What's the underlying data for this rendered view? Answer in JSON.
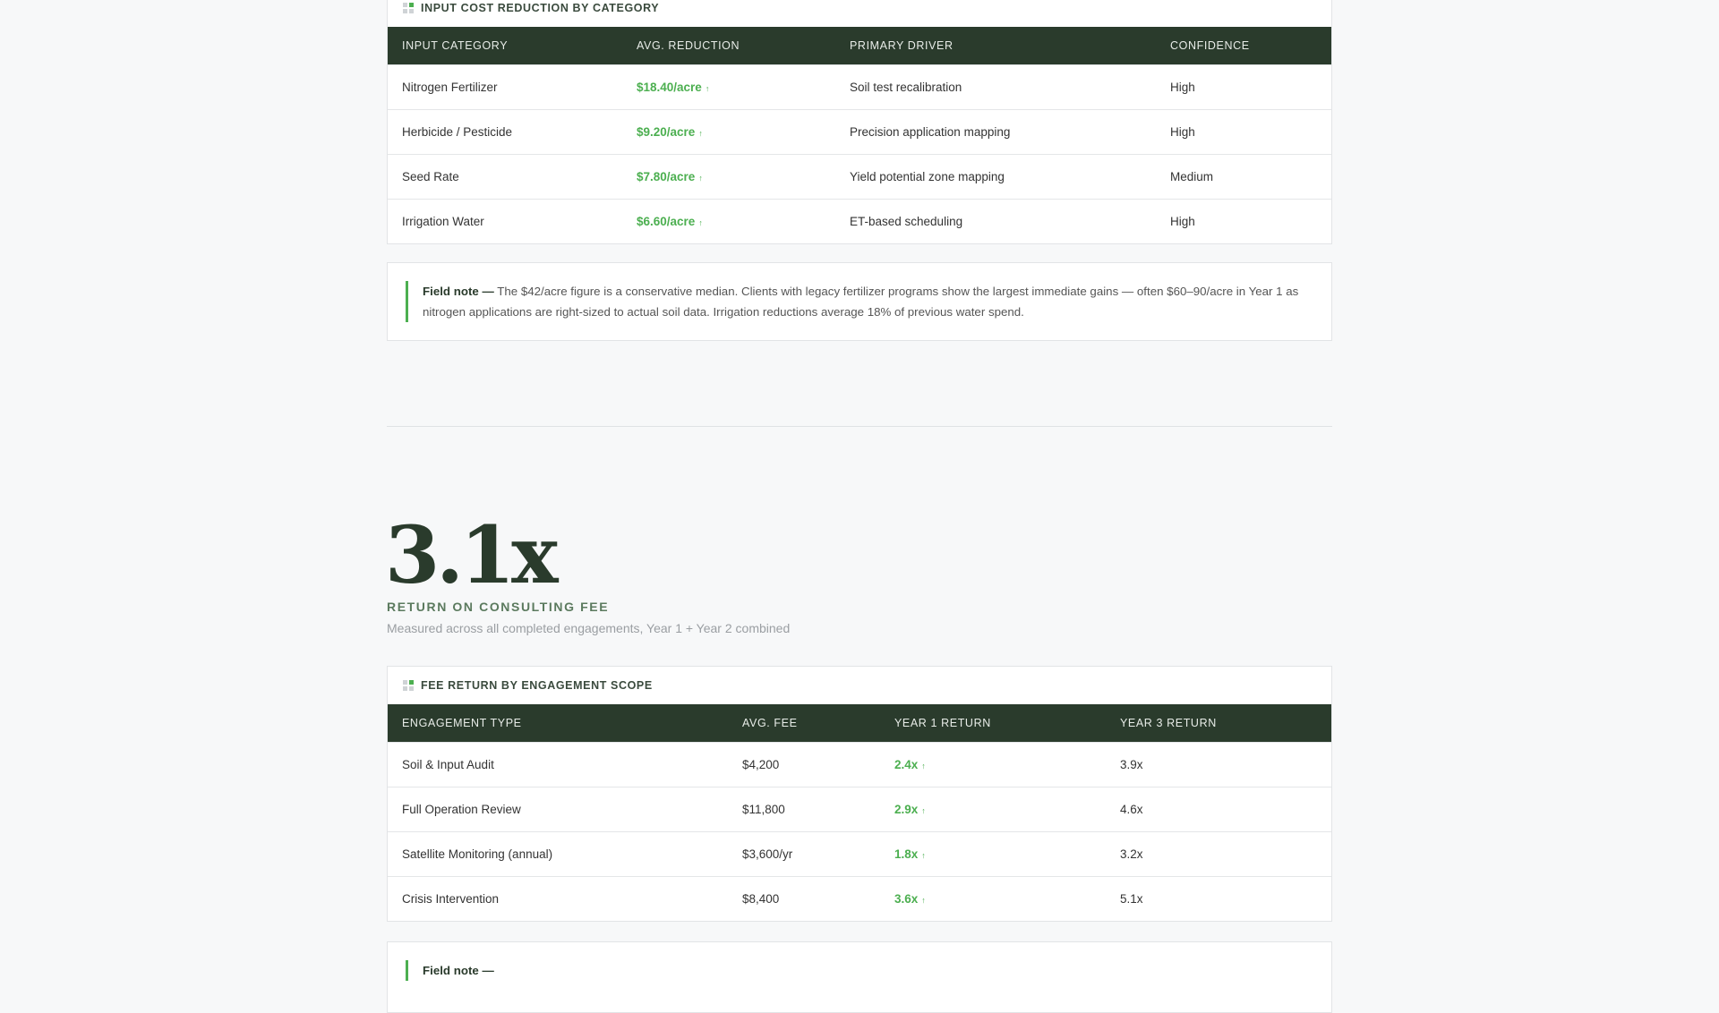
{
  "section1": {
    "title": "INPUT COST REDUCTION BY CATEGORY",
    "headers": [
      "INPUT CATEGORY",
      "AVG. REDUCTION",
      "PRIMARY DRIVER",
      "CONFIDENCE"
    ],
    "rows": [
      {
        "category": "Nitrogen Fertilizer",
        "reduction": "$18.40/acre",
        "driver": "Soil test recalibration",
        "confidence": "High"
      },
      {
        "category": "Herbicide / Pesticide",
        "reduction": "$9.20/acre",
        "driver": "Precision application mapping",
        "confidence": "High"
      },
      {
        "category": "Seed Rate",
        "reduction": "$7.80/acre",
        "driver": "Yield potential zone mapping",
        "confidence": "Medium"
      },
      {
        "category": "Irrigation Water",
        "reduction": "$6.60/acre",
        "driver": "ET-based scheduling",
        "confidence": "High"
      }
    ],
    "up_arrow": "↑",
    "note_label": "Field note —",
    "note_text": " The $42/acre figure is a conservative median. Clients with legacy fertilizer programs show the largest immediate gains — often $60–90/acre in Year 1 as nitrogen applications are right-sized to actual soil data. Irrigation reductions average 18% of previous water spend."
  },
  "hero": {
    "value": "3.1x",
    "label": "RETURN ON CONSULTING FEE",
    "subtitle": "Measured across all completed engagements, Year 1 + Year 2 combined"
  },
  "section2": {
    "title": "FEE RETURN BY ENGAGEMENT SCOPE",
    "headers": [
      "ENGAGEMENT TYPE",
      "AVG. FEE",
      "YEAR 1 RETURN",
      "YEAR 3 RETURN"
    ],
    "rows": [
      {
        "type": "Soil & Input Audit",
        "fee": "$4,200",
        "y1": "2.4x",
        "y3": "3.9x"
      },
      {
        "type": "Full Operation Review",
        "fee": "$11,800",
        "y1": "2.9x",
        "y3": "4.6x"
      },
      {
        "type": "Satellite Monitoring (annual)",
        "fee": "$3,600/yr",
        "y1": "1.8x",
        "y3": "3.2x"
      },
      {
        "type": "Crisis Intervention",
        "fee": "$8,400",
        "y1": "3.6x",
        "y3": "5.1x"
      }
    ],
    "note_label": "Field note —"
  },
  "colors": {
    "accent": "#4caf50",
    "header_bg": "#2a3b2c"
  }
}
